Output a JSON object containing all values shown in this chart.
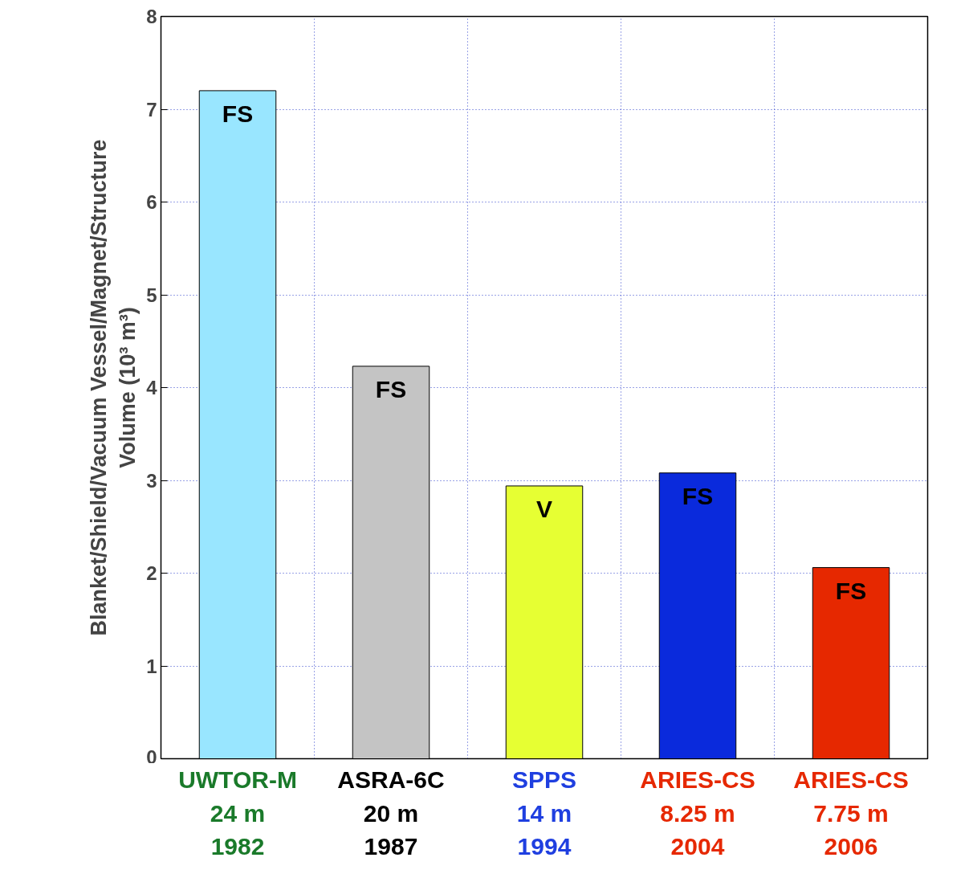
{
  "chart_data": {
    "type": "bar",
    "ylabel": "Blanket/Shield/Vacuum Vessel/Magnet/Structure\nVolume (10³ m³)",
    "categories": [
      "UWTOR-M\n24 m\n1982",
      "ASRA-6C\n20 m\n1987",
      "SPPS\n14 m\n1994",
      "ARIES-CS\n8.25 m\n2004",
      "ARIES-CS\n7.75 m\n2006"
    ],
    "values": [
      7.2,
      4.23,
      2.94,
      3.08,
      2.06
    ],
    "colors": [
      "#99e6ff",
      "#c4c4c4",
      "#e6ff33",
      "#0a2adc",
      "#e62800"
    ],
    "ylim": [
      0,
      8
    ],
    "yticks": [
      0,
      1,
      2,
      3,
      4,
      5,
      6,
      7,
      8
    ],
    "grid": true,
    "value_labels": [
      "FS",
      "FS",
      "V",
      "FS",
      "FS"
    ]
  }
}
